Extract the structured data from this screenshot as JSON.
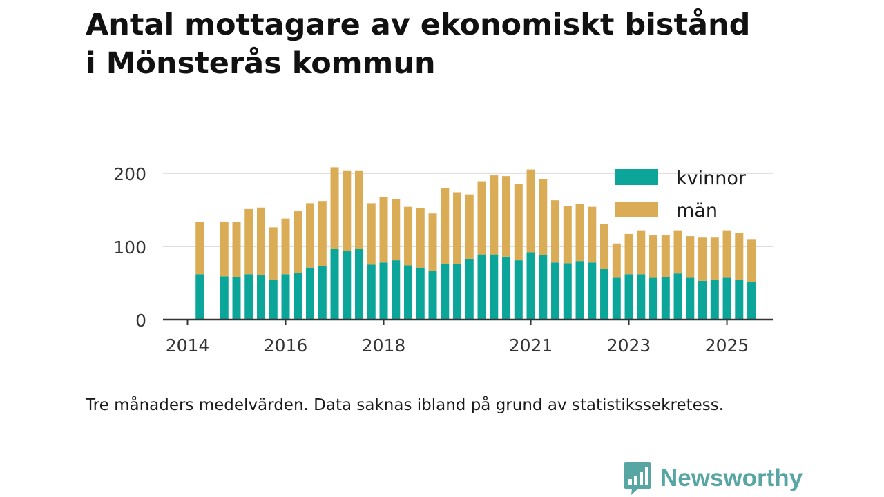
{
  "title_line1": "Antal mottagare av ekonomiskt bistånd",
  "title_line2": "i Mönsterås kommun",
  "caption": "Tre månaders medelvärden. Data saknas ibland på grund av statistikssekretess.",
  "brand": {
    "name": "Newsworthy",
    "logo_icon": "bar-chart-speech-bubble-icon"
  },
  "colors": {
    "kvinnor": "#0ba59a",
    "man": "#dbac56",
    "grid": "#dddddd",
    "axis": "#333333",
    "brand": "#58a6a3"
  },
  "chart_data": {
    "type": "bar",
    "stacked": true,
    "title": "Antal mottagare av ekonomiskt bistånd i Mönsterås kommun",
    "xlabel": "",
    "ylabel": "",
    "ylim": [
      0,
      215
    ],
    "yticks": [
      0,
      100,
      200
    ],
    "xlim": [
      2013.5,
      2025.95
    ],
    "xticks": [
      2014,
      2016,
      2018,
      2021,
      2023,
      2025
    ],
    "grid": true,
    "legend_position": "top-right",
    "x": [
      2014.25,
      2014.75,
      2015.0,
      2015.25,
      2015.5,
      2015.75,
      2016.0,
      2016.25,
      2016.5,
      2016.75,
      2017.0,
      2017.25,
      2017.5,
      2017.75,
      2018.0,
      2018.25,
      2018.5,
      2018.75,
      2019.0,
      2019.25,
      2019.5,
      2019.75,
      2020.0,
      2020.25,
      2020.5,
      2020.75,
      2021.0,
      2021.25,
      2021.5,
      2021.75,
      2022.0,
      2022.25,
      2022.5,
      2022.75,
      2023.0,
      2023.25,
      2023.5,
      2023.75,
      2024.0,
      2024.25,
      2024.5,
      2024.75,
      2025.0,
      2025.25,
      2025.5
    ],
    "series": [
      {
        "name": "kvinnor",
        "values": [
          62,
          59,
          58,
          62,
          61,
          54,
          62,
          64,
          71,
          73,
          97,
          94,
          97,
          75,
          78,
          81,
          74,
          71,
          66,
          76,
          76,
          83,
          89,
          89,
          86,
          81,
          92,
          88,
          78,
          77,
          80,
          78,
          69,
          57,
          62,
          62,
          57,
          58,
          63,
          57,
          53,
          54,
          57,
          54,
          51
        ]
      },
      {
        "name": "män",
        "values": [
          71,
          75,
          75,
          89,
          92,
          72,
          76,
          84,
          88,
          89,
          111,
          109,
          106,
          84,
          89,
          84,
          80,
          81,
          79,
          104,
          98,
          88,
          100,
          108,
          110,
          104,
          113,
          104,
          85,
          78,
          78,
          76,
          62,
          47,
          55,
          60,
          58,
          57,
          59,
          57,
          59,
          58,
          65,
          64,
          59
        ]
      }
    ],
    "tick_labels_y": [
      "0",
      "100",
      "200"
    ],
    "tick_labels_x": [
      "2014",
      "2016",
      "2018",
      "2021",
      "2023",
      "2025"
    ]
  }
}
